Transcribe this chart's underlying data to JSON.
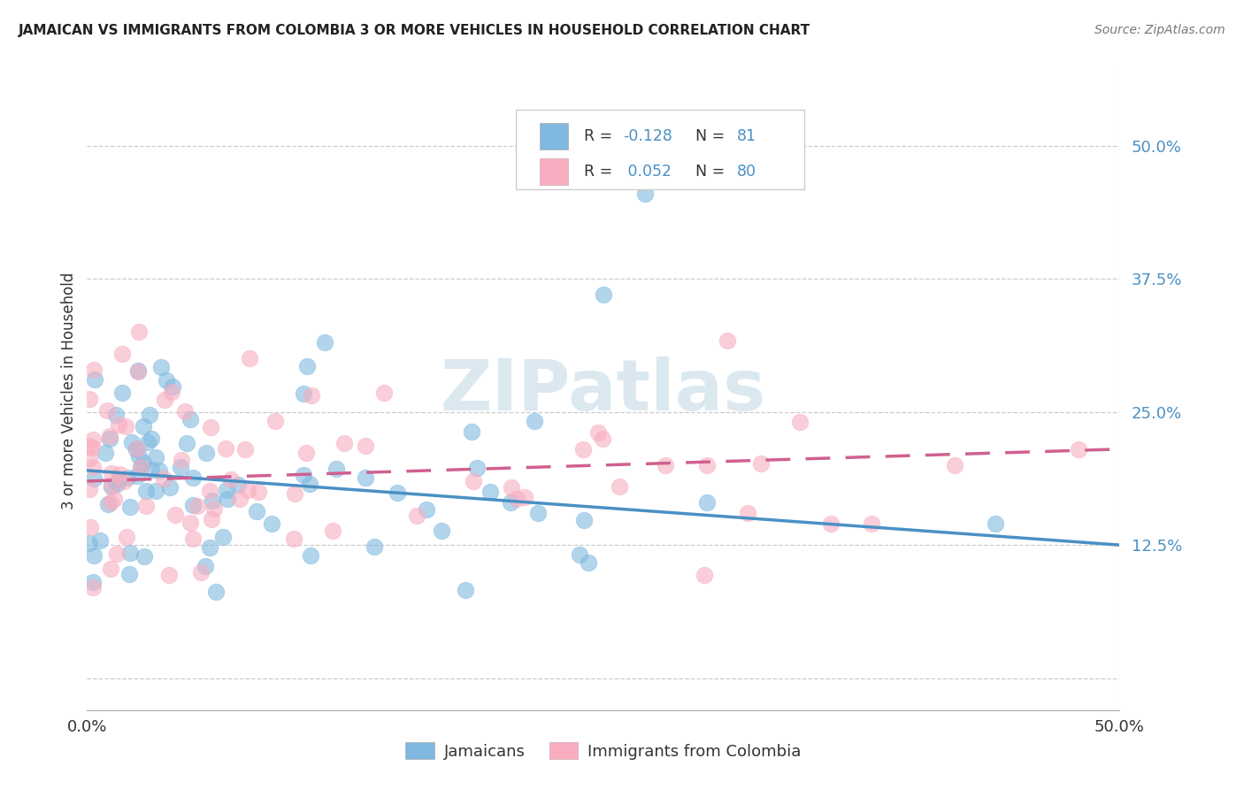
{
  "title": "JAMAICAN VS IMMIGRANTS FROM COLOMBIA 3 OR MORE VEHICLES IN HOUSEHOLD CORRELATION CHART",
  "source": "Source: ZipAtlas.com",
  "ylabel": "3 or more Vehicles in Household",
  "xlim": [
    0.0,
    0.5
  ],
  "ylim": [
    -0.03,
    0.57
  ],
  "yticks": [
    0.0,
    0.125,
    0.25,
    0.375,
    0.5
  ],
  "ytick_labels": [
    "",
    "12.5%",
    "25.0%",
    "37.5%",
    "50.0%"
  ],
  "jamaicans_R": -0.128,
  "jamaicans_N": 81,
  "colombia_R": 0.052,
  "colombia_N": 80,
  "blue_color": "#7fb9e0",
  "pink_color": "#f8aec0",
  "blue_line_color": "#4a90c4",
  "pink_line_color": "#d06090",
  "watermark_color": "#dce8f0",
  "legend_label_1": "Jamaicans",
  "legend_label_2": "Immigrants from Colombia",
  "blue_trend_x": [
    0.0,
    0.5
  ],
  "blue_trend_y": [
    0.195,
    0.125
  ],
  "pink_trend_x": [
    0.0,
    0.5
  ],
  "pink_trend_y": [
    0.185,
    0.215
  ]
}
